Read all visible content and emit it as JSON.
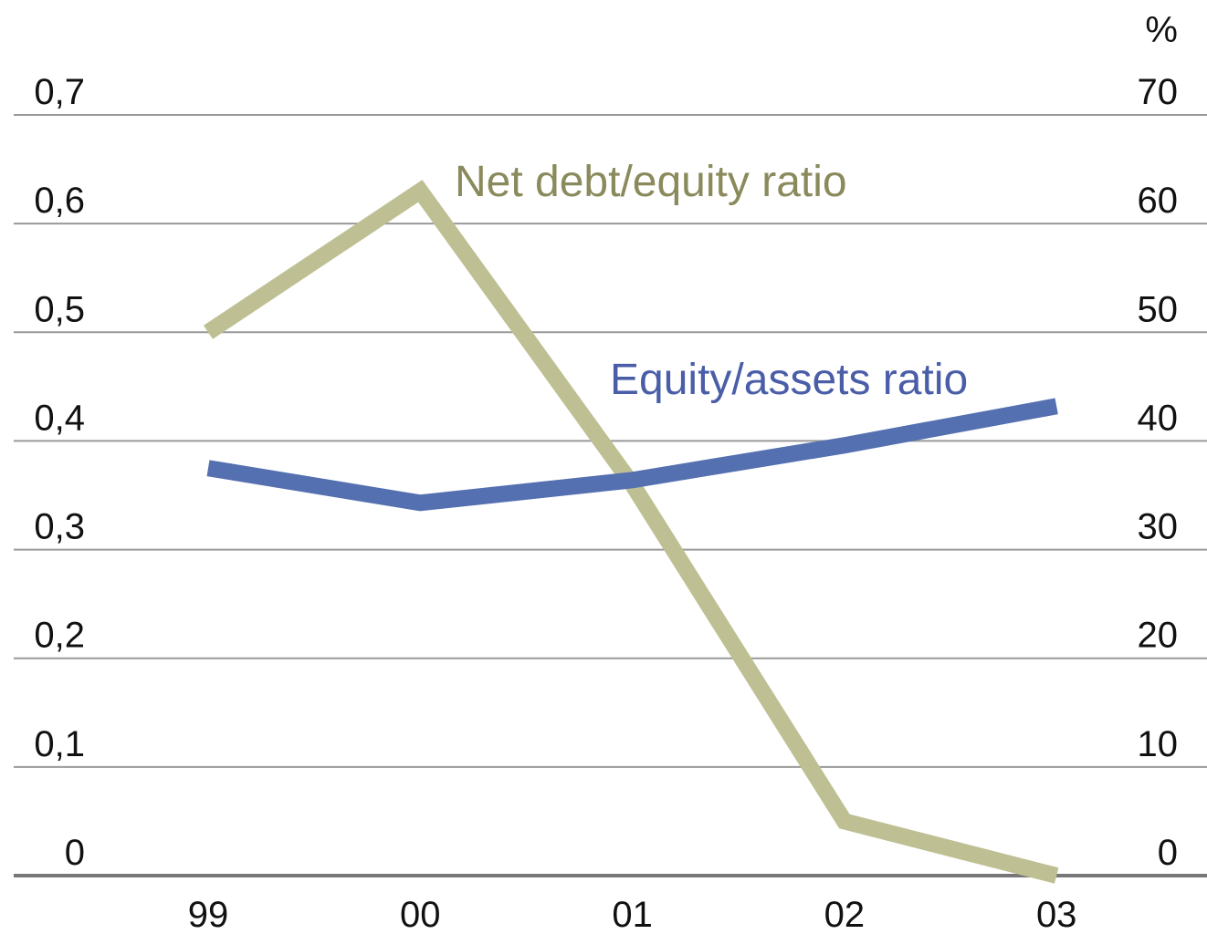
{
  "chart_data": {
    "type": "line",
    "categories": [
      "99",
      "00",
      "01",
      "02",
      "03"
    ],
    "series": [
      {
        "name": "Net debt/equity ratio",
        "color": "#bfbf94",
        "label_color": "#8a8a5c",
        "axis": "y",
        "values": [
          0.5,
          0.63,
          0.36,
          0.05,
          0.0
        ]
      },
      {
        "name": "Equity/assets ratio",
        "color": "#5470b0",
        "label_color": "#4a5ea8",
        "axis": "y2",
        "values": [
          37.5,
          34.3,
          36.4,
          39.6,
          43.2
        ]
      }
    ],
    "ylim": [
      0,
      0.7
    ],
    "yticks": [
      0,
      {
        "value": 0.1,
        "label": "0,1"
      },
      {
        "value": 0.2,
        "label": "0,2"
      },
      {
        "value": 0.3,
        "label": "0,3"
      },
      {
        "value": 0.4,
        "label": "0,4"
      },
      {
        "value": 0.5,
        "label": "0,5"
      },
      {
        "value": 0.6,
        "label": "0,6"
      },
      {
        "value": 0.7,
        "label": "0,7"
      }
    ],
    "y2lim": [
      0,
      70
    ],
    "y2ticks": [
      0,
      10,
      20,
      30,
      40,
      50,
      60,
      70
    ],
    "y2label": "%",
    "grid": true
  }
}
